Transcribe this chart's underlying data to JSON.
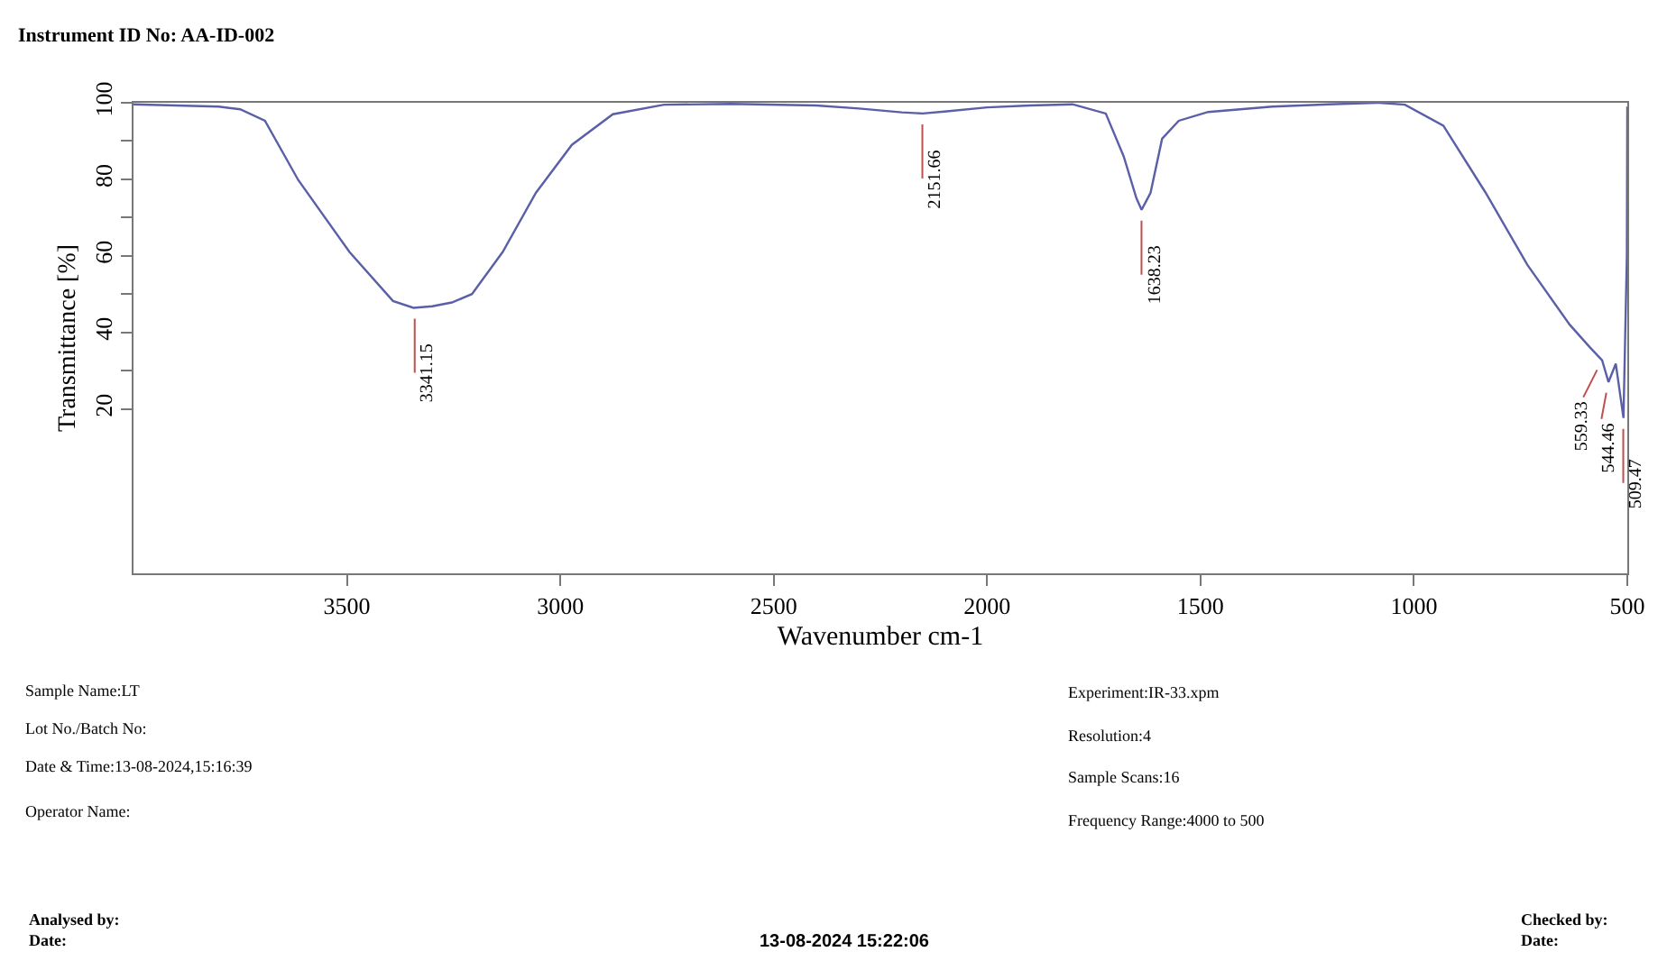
{
  "chart_data": {
    "type": "line",
    "xlabel": "Wavenumber cm-1",
    "ylabel": "Transmittance [%]",
    "x": [
      4000,
      3900,
      3800,
      3750,
      3692,
      3614,
      3494,
      3392,
      3344,
      3300,
      3254,
      3207,
      3135,
      3057,
      2973,
      2877,
      2757,
      2600,
      2400,
      2300,
      2200,
      2151,
      2100,
      2000,
      1900,
      1800,
      1722,
      1680,
      1650,
      1638,
      1617,
      1590,
      1551,
      1482,
      1332,
      1200,
      1081,
      1021,
      931,
      832,
      734,
      635,
      587,
      559,
      544,
      527,
      509,
      501,
      500
    ],
    "series": [
      {
        "color": "#5a5fa8",
        "values": [
          99.6,
          99.3,
          99,
          98.3,
          95.3,
          79.8,
          61,
          48.2,
          46.4,
          46.8,
          47.8,
          50,
          61,
          76.5,
          89,
          97,
          99.5,
          99.7,
          99.3,
          98.5,
          97.5,
          97.2,
          97.7,
          98.8,
          99.3,
          99.6,
          97.2,
          86,
          75,
          72,
          76.5,
          90.6,
          95.3,
          97.6,
          99,
          99.6,
          100,
          99.5,
          94,
          76.5,
          57.6,
          42,
          36,
          32.7,
          27,
          31.8,
          17.6,
          60,
          99
        ]
      }
    ],
    "xlim": [
      4000,
      500
    ],
    "xticks": [
      3500,
      3000,
      2500,
      2000,
      1500,
      1000,
      500
    ],
    "ylim": [
      -23,
      100
    ],
    "yticks": [
      20,
      {
        "value": 30,
        "label": null
      },
      40,
      {
        "value": 50,
        "label": null
      },
      60,
      {
        "value": 70,
        "label": null
      },
      80,
      {
        "value": 90,
        "label": null
      },
      100
    ],
    "grid": false,
    "legend": false,
    "marker": "none",
    "line_style": "solid",
    "annotations": [
      {
        "text": "3341.15",
        "x": 3341.15,
        "y": 46.4
      },
      {
        "text": "2151.66",
        "x": 2151.66,
        "y": 97.2
      },
      {
        "text": "1638.23",
        "x": 1638.23,
        "y": 72
      },
      {
        "text": "559.33",
        "x": 559.33,
        "y": 32.7
      },
      {
        "text": "544.46",
        "x": 544.46,
        "y": 27
      },
      {
        "text": "509.47",
        "x": 509.47,
        "y": 17.6
      },
      "Instrument ID No: AA-ID-002",
      "Sample Name:LT",
      "Lot No./Batch No:",
      "Date & Time:13-08-2024,15:16:39",
      "Operator Name:",
      "Experiment:IR-33.xpm",
      "Resolution:4",
      "Sample Scans:16",
      "Frequency Range:4000 to 500",
      "Analysed by:\nDate:",
      "13-08-2024 15:22:06",
      "Checked by:\nDate:"
    ]
  }
}
